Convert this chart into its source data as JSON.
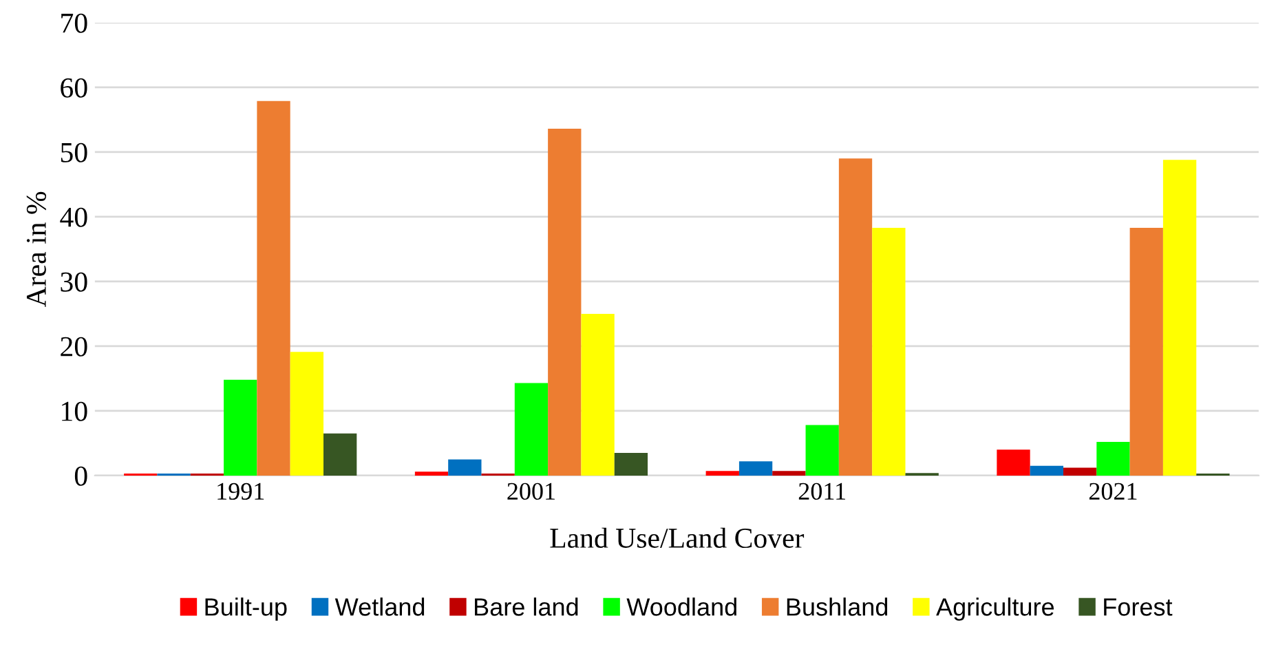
{
  "chart_data": {
    "type": "bar",
    "xlabel": "Land Use/Land Cover",
    "ylabel": "Area in %",
    "categories": [
      "1991",
      "2001",
      "2011",
      "2021"
    ],
    "series": [
      {
        "name": "Built-up",
        "color": "#ff0000",
        "values": [
          0.3,
          0.6,
          0.7,
          4.0
        ]
      },
      {
        "name": "Wetland",
        "color": "#0070c0",
        "values": [
          0.3,
          2.5,
          2.2,
          1.5
        ]
      },
      {
        "name": "Bare land",
        "color": "#c00000",
        "values": [
          0.3,
          0.3,
          0.7,
          1.2
        ]
      },
      {
        "name": "Woodland",
        "color": "#00ff00",
        "values": [
          14.8,
          14.3,
          7.8,
          5.2
        ]
      },
      {
        "name": "Bushland",
        "color": "#ed7d31",
        "values": [
          57.9,
          53.6,
          49.0,
          38.3
        ]
      },
      {
        "name": "Agriculture",
        "color": "#ffff00",
        "values": [
          19.1,
          25.0,
          38.3,
          48.8
        ]
      },
      {
        "name": "Forest",
        "color": "#375623",
        "values": [
          6.5,
          3.5,
          0.4,
          0.3
        ]
      }
    ],
    "ylim": [
      0,
      70
    ],
    "yticks": [
      0,
      10,
      20,
      30,
      40,
      50,
      60,
      70
    ],
    "grid": "y",
    "legend": "bottom"
  }
}
